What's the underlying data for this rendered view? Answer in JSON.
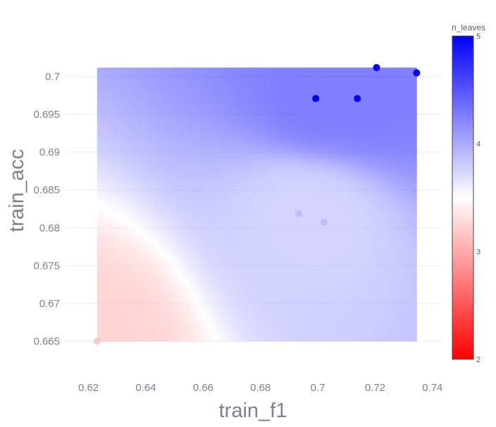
{
  "chart_data": {
    "type": "scatter",
    "title": "",
    "xlabel": "train_f1",
    "ylabel": "train_acc",
    "xlim": [
      0.612,
      0.743
    ],
    "ylim": [
      0.6614,
      0.7064
    ],
    "xticks": [
      0.62,
      0.64,
      0.66,
      0.68,
      0.7,
      0.72,
      0.74
    ],
    "xtick_labels": [
      "0.62",
      "0.64",
      "0.66",
      "0.68",
      "0.7",
      "0.72",
      "0.74"
    ],
    "yticks": [
      0.665,
      0.67,
      0.675,
      0.68,
      0.685,
      0.69,
      0.695,
      0.7
    ],
    "ytick_labels": [
      "0.665",
      "0.67",
      "0.675",
      "0.68",
      "0.685",
      "0.69",
      "0.695",
      "0.7"
    ],
    "grid": true,
    "colorbar": {
      "title": "n_leaves",
      "min": 2,
      "max": 5,
      "ticks": [
        2,
        3,
        4,
        5
      ],
      "tick_labels": [
        "2",
        "3",
        "4",
        "5"
      ],
      "colorscale": [
        "#ff0000",
        "#ffffff",
        "#0000ff"
      ]
    },
    "surface": {
      "type": "interpolated_contour",
      "x_range": [
        0.623,
        0.7345
      ],
      "y_range": [
        0.665,
        0.7012
      ],
      "opacity": 0.5
    },
    "points": [
      {
        "x": 0.623,
        "y": 0.665,
        "n_leaves": 3
      },
      {
        "x": 0.6993,
        "y": 0.6971,
        "n_leaves": 5
      },
      {
        "x": 0.7138,
        "y": 0.6971,
        "n_leaves": 5
      },
      {
        "x": 0.7205,
        "y": 0.7012,
        "n_leaves": 5
      },
      {
        "x": 0.7345,
        "y": 0.7005,
        "n_leaves": 5
      },
      {
        "x": 0.6933,
        "y": 0.6819,
        "n_leaves": 4
      },
      {
        "x": 0.7022,
        "y": 0.6807,
        "n_leaves": 4
      }
    ]
  }
}
